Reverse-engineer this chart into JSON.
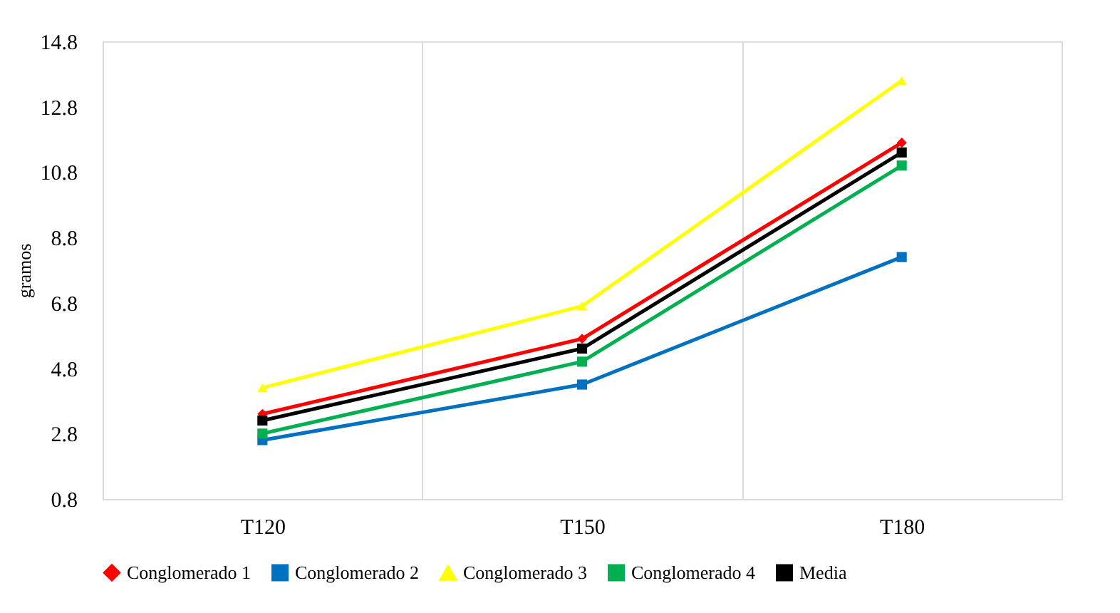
{
  "chart_data": {
    "type": "line",
    "ylabel": "gramos",
    "categories": [
      "T120",
      "T150",
      "T180"
    ],
    "ylim": [
      0.8,
      14.8
    ],
    "yticks": [
      0.8,
      2.8,
      4.8,
      6.8,
      8.8,
      10.8,
      12.8,
      14.8
    ],
    "grid": "x",
    "legend": "bottom",
    "series": [
      {
        "name": "Conglomerado 1",
        "color": "#ff0000",
        "marker": "diamond",
        "values": [
          3.4,
          5.7,
          11.7
        ]
      },
      {
        "name": "Conglomerado 2",
        "color": "#0070c0",
        "marker": "square",
        "values": [
          2.6,
          4.3,
          8.2
        ]
      },
      {
        "name": "Conglomerado 3",
        "color": "#ffff00",
        "marker": "triangle",
        "values": [
          4.2,
          6.7,
          13.6
        ]
      },
      {
        "name": "Conglomerado 4",
        "color": "#00b050",
        "marker": "square",
        "values": [
          2.8,
          5.0,
          11.0
        ]
      },
      {
        "name": "Media",
        "color": "#000000",
        "marker": "square",
        "values": [
          3.2,
          5.4,
          11.4
        ]
      }
    ]
  }
}
